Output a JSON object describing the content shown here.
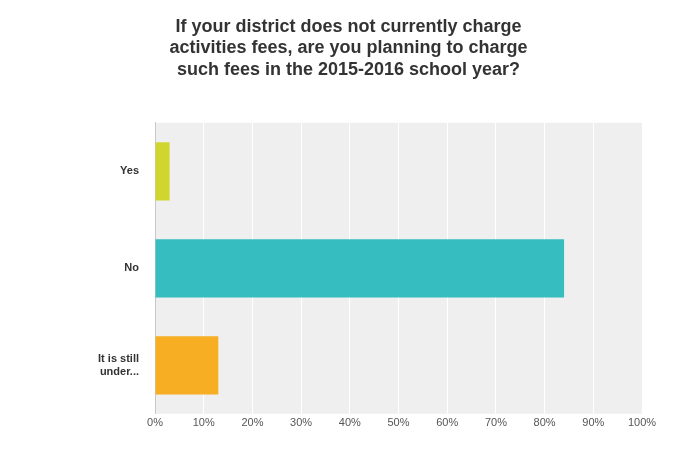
{
  "chart_data": {
    "type": "bar",
    "orientation": "horizontal",
    "title": "If your district does not currently charge activities fees, are you planning to charge such fees in the 2015-2016 school year?",
    "categories": [
      "Yes",
      "No",
      "It is still under..."
    ],
    "values": [
      3,
      84,
      13
    ],
    "colors": [
      "#d1d52f",
      "#35bdbf",
      "#f7ae22"
    ],
    "xlim": [
      0,
      100
    ],
    "xticks": [
      {
        "value": 0,
        "label": "0%"
      },
      {
        "value": 10,
        "label": "10%"
      },
      {
        "value": 20,
        "label": "20%"
      },
      {
        "value": 30,
        "label": "30%"
      },
      {
        "value": 40,
        "label": "40%"
      },
      {
        "value": 50,
        "label": "50%"
      },
      {
        "value": 60,
        "label": "60%"
      },
      {
        "value": 70,
        "label": "70%"
      },
      {
        "value": 80,
        "label": "80%"
      },
      {
        "value": 90,
        "label": "90%"
      },
      {
        "value": 100,
        "label": "100%"
      }
    ],
    "grid": true
  }
}
